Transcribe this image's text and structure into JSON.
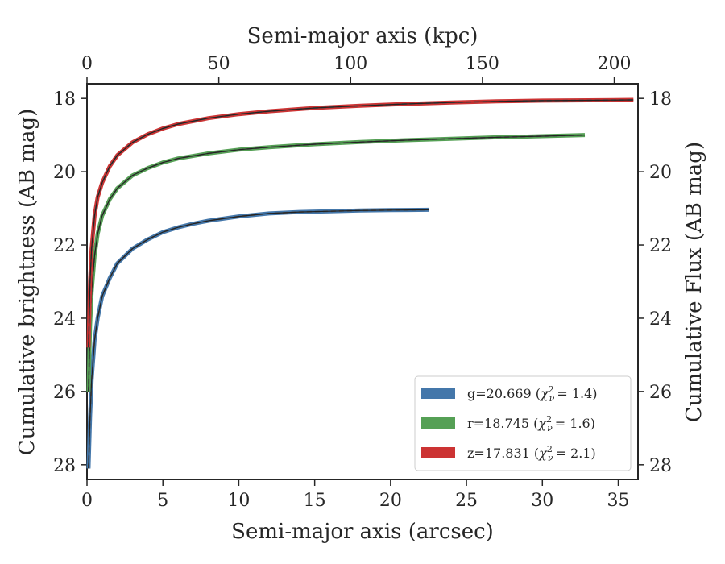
{
  "chart_data": {
    "type": "line",
    "xlabel_bottom": "Semi-major axis (arcsec)",
    "xlabel_top": "Semi-major axis (kpc)",
    "ylabel_left": "Cumulative brightness (AB mag)",
    "ylabel_right": "Cumulative Flux (AB mag)",
    "xlim_arcsec": [
      0,
      36.3
    ],
    "xlim_kpc": [
      0,
      209
    ],
    "ylim": [
      28.4,
      17.6
    ],
    "y_inverted": true,
    "grid": false,
    "legend_position": "lower-right",
    "xticks_bottom": [
      0,
      5,
      10,
      15,
      20,
      25,
      30,
      35
    ],
    "xticks_top": [
      0,
      50,
      100,
      150,
      200
    ],
    "yticks": [
      18,
      20,
      22,
      24,
      26,
      28
    ],
    "series": [
      {
        "name": "g=20.669 (χ²ν = 1.4)",
        "legend_text": "g=20.669 (",
        "legend_chi": "2",
        "legend_nu": "ν",
        "legend_value": "= 1.4)",
        "color": "#4477aa",
        "x": [
          0.1,
          0.2,
          0.3,
          0.5,
          0.7,
          1.0,
          1.5,
          2.0,
          3.0,
          4.0,
          5.0,
          6.0,
          7.0,
          8.0,
          10.0,
          12.0,
          14.0,
          16.0,
          18.0,
          20.0,
          22.5
        ],
        "y": [
          28.1,
          26.7,
          25.7,
          24.6,
          24.0,
          23.4,
          22.9,
          22.5,
          22.1,
          21.85,
          21.65,
          21.52,
          21.42,
          21.34,
          21.22,
          21.14,
          21.1,
          21.08,
          21.06,
          21.05,
          21.04
        ]
      },
      {
        "name": "r=18.745 (χ²ν = 1.6)",
        "legend_text": "r=18.745 (",
        "legend_chi": "2",
        "legend_nu": "ν",
        "legend_value": "= 1.6)",
        "color": "#55a055",
        "x": [
          0.1,
          0.2,
          0.3,
          0.5,
          0.7,
          1.0,
          1.5,
          2.0,
          3.0,
          4.0,
          5.0,
          6.0,
          8.0,
          10.0,
          12.0,
          15.0,
          18.0,
          21.0,
          24.0,
          27.0,
          30.0,
          32.8
        ],
        "y": [
          26.0,
          24.2,
          23.3,
          22.3,
          21.7,
          21.2,
          20.75,
          20.45,
          20.1,
          19.9,
          19.75,
          19.64,
          19.5,
          19.4,
          19.33,
          19.25,
          19.19,
          19.14,
          19.1,
          19.06,
          19.03,
          19.0
        ]
      },
      {
        "name": "z=17.831 (χ²ν = 2.1)",
        "legend_text": "z=17.831 (",
        "legend_chi": "2",
        "legend_nu": "ν",
        "legend_value": "= 2.1)",
        "color": "#cc3333",
        "x": [
          0.1,
          0.2,
          0.3,
          0.5,
          0.7,
          1.0,
          1.5,
          2.0,
          3.0,
          4.0,
          5.0,
          6.0,
          8.0,
          10.0,
          12.0,
          15.0,
          18.0,
          21.0,
          24.0,
          27.0,
          30.0,
          33.0,
          36.0
        ],
        "y": [
          24.8,
          23.0,
          22.1,
          21.2,
          20.7,
          20.3,
          19.85,
          19.55,
          19.2,
          18.98,
          18.82,
          18.7,
          18.54,
          18.43,
          18.35,
          18.26,
          18.2,
          18.15,
          18.11,
          18.08,
          18.06,
          18.05,
          18.04
        ]
      }
    ]
  }
}
